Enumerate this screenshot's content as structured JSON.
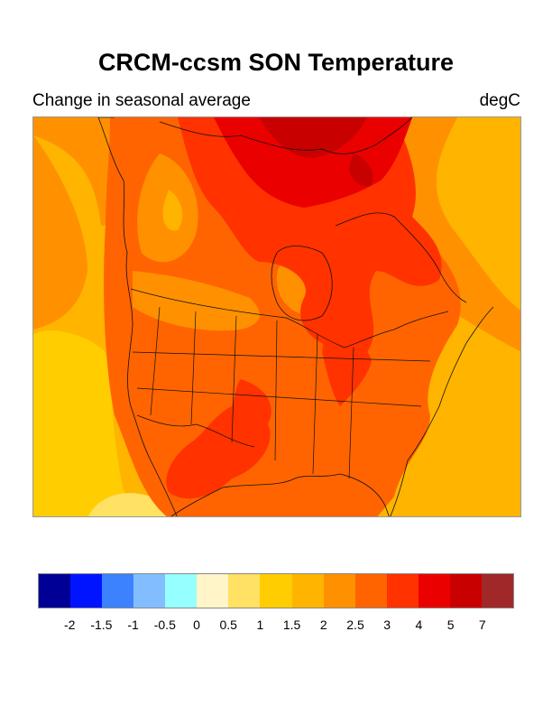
{
  "title": "CRCM-ccsm SON Temperature",
  "subtitle_left": "Change in seasonal average",
  "subtitle_right": "degC",
  "map": {
    "region": "North America",
    "variable": "Temperature",
    "season": "SON"
  },
  "colorbar": {
    "colors": [
      "#000096",
      "#0014ff",
      "#3c82ff",
      "#82beff",
      "#96ffff",
      "#fff5c8",
      "#ffe164",
      "#ffcd00",
      "#ffb400",
      "#ff9100",
      "#ff6400",
      "#ff3200",
      "#eb0000",
      "#c80000",
      "#a02828"
    ],
    "labels": [
      "-2",
      "-1.5",
      "-1",
      "-0.5",
      "0",
      "0.5",
      "1",
      "1.5",
      "2",
      "2.5",
      "3",
      "4",
      "5",
      "7"
    ]
  }
}
